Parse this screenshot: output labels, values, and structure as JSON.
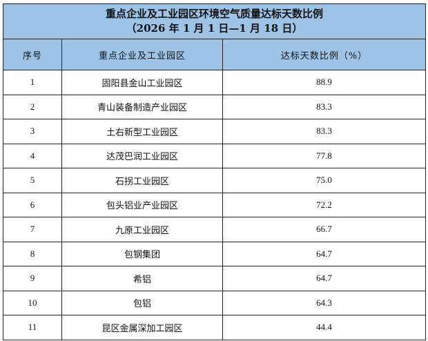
{
  "title": {
    "line1": "重点企业及工业园区环境空气质量达标天数比例",
    "line2": "（2026 年 1 月 1 日—1 月 18 日）"
  },
  "header": {
    "index": "序号",
    "name": "重点企业及工业园区",
    "ratio": "达标天数比例（%）"
  },
  "rows": [
    {
      "index": "1",
      "name": "固阳县金山工业园区",
      "ratio": "88.9"
    },
    {
      "index": "2",
      "name": "青山装备制造产业园区",
      "ratio": "83.3"
    },
    {
      "index": "3",
      "name": "土右新型工业园区",
      "ratio": "83.3"
    },
    {
      "index": "4",
      "name": "达茂巴润工业园区",
      "ratio": "77.8"
    },
    {
      "index": "5",
      "name": "石拐工业园区",
      "ratio": "75.0"
    },
    {
      "index": "6",
      "name": "包头铝业产业园区",
      "ratio": "72.2"
    },
    {
      "index": "7",
      "name": "九原工业园区",
      "ratio": "66.7"
    },
    {
      "index": "8",
      "name": "包钢集团",
      "ratio": "64.7"
    },
    {
      "index": "9",
      "name": "希铝",
      "ratio": "64.7"
    },
    {
      "index": "10",
      "name": "包铝",
      "ratio": "64.3"
    },
    {
      "index": "11",
      "name": "昆区金属深加工园区",
      "ratio": "44.4"
    }
  ]
}
